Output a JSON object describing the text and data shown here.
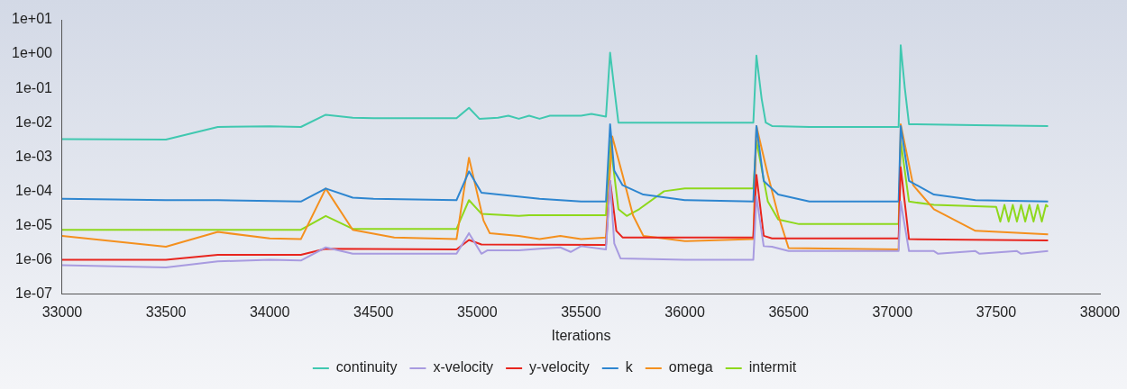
{
  "chart_data": {
    "type": "line",
    "xlabel": "Iterations",
    "log": "y",
    "grid": false,
    "legend": "bottom",
    "marker": "none",
    "line_style": "solid",
    "xlim": [
      33000,
      38000
    ],
    "xticks": [
      33000,
      33500,
      34000,
      34500,
      35000,
      35500,
      36000,
      36500,
      37000,
      37500,
      38000
    ],
    "ylim": [
      1e-07,
      10
    ],
    "yticks": [
      {
        "value": 1e-07,
        "label": "1e-07"
      },
      {
        "value": 1e-06,
        "label": "1e-06"
      },
      {
        "value": 1e-05,
        "label": "1e-05"
      },
      {
        "value": 0.0001,
        "label": "1e-04"
      },
      {
        "value": 0.001,
        "label": "1e-03"
      },
      {
        "value": 0.01,
        "label": "1e-02"
      },
      {
        "value": 0.1,
        "label": "1e-01"
      },
      {
        "value": 1,
        "label": "1e+00"
      },
      {
        "value": 10,
        "label": "1e+01"
      }
    ],
    "series": [
      {
        "name": "continuity",
        "color": "#40c8b0",
        "x": [
          33000,
          33500,
          33750,
          34000,
          34150,
          34270,
          34400,
          34500,
          34900,
          34960,
          35010,
          35100,
          35150,
          35200,
          35250,
          35300,
          35350,
          35500,
          35550,
          35620,
          35640,
          35660,
          35680,
          36000,
          36330,
          36345,
          36370,
          36390,
          36420,
          36600,
          37030,
          37040,
          37060,
          37080,
          37400,
          37750
        ],
        "values": [
          0.0033,
          0.0032,
          0.0075,
          0.0078,
          0.0075,
          0.017,
          0.014,
          0.0135,
          0.0135,
          0.027,
          0.013,
          0.014,
          0.016,
          0.013,
          0.016,
          0.013,
          0.016,
          0.016,
          0.018,
          0.015,
          1.1,
          0.1,
          0.01,
          0.01,
          0.01,
          0.9,
          0.05,
          0.01,
          0.008,
          0.0075,
          0.0075,
          1.8,
          0.1,
          0.009,
          0.0085,
          0.008
        ]
      },
      {
        "name": "x-velocity",
        "color": "#a89be0",
        "x": [
          33000,
          33500,
          33750,
          34000,
          34150,
          34270,
          34400,
          34900,
          34960,
          35020,
          35050,
          35200,
          35300,
          35400,
          35450,
          35500,
          35620,
          35640,
          35660,
          35690,
          36000,
          36330,
          36345,
          36380,
          36420,
          36500,
          37030,
          37040,
          37080,
          37200,
          37220,
          37400,
          37420,
          37600,
          37620,
          37750
        ],
        "values": [
          7e-07,
          6e-07,
          9e-07,
          1e-06,
          9.5e-07,
          2.3e-06,
          1.5e-06,
          1.5e-06,
          6e-06,
          1.5e-06,
          1.9e-06,
          1.9e-06,
          2.1e-06,
          2.3e-06,
          1.7e-06,
          2.5e-06,
          2e-06,
          0.0002,
          3e-06,
          1.1e-06,
          1e-06,
          1e-06,
          7e-05,
          2.5e-06,
          2.4e-06,
          1.8e-06,
          1.8e-06,
          5e-05,
          1.8e-06,
          1.8e-06,
          1.5e-06,
          1.8e-06,
          1.5e-06,
          1.8e-06,
          1.5e-06,
          1.8e-06
        ]
      },
      {
        "name": "y-velocity",
        "color": "#e8251e",
        "x": [
          33000,
          33500,
          33750,
          34150,
          34270,
          34900,
          34960,
          35020,
          35620,
          35640,
          35670,
          35700,
          36330,
          36345,
          36380,
          36420,
          37030,
          37040,
          37080,
          37750
        ],
        "values": [
          1e-06,
          1e-06,
          1.4e-06,
          1.4e-06,
          2.1e-06,
          2e-06,
          3.8e-06,
          2.8e-06,
          2.7e-06,
          0.0002,
          7e-06,
          4.5e-06,
          4.5e-06,
          0.0003,
          5e-06,
          4.2e-06,
          4.2e-06,
          0.0005,
          4e-06,
          3.7e-06
        ]
      },
      {
        "name": "k",
        "color": "#2e86d0",
        "x": [
          33000,
          33500,
          33750,
          34150,
          34270,
          34400,
          34500,
          34900,
          34960,
          35020,
          35300,
          35500,
          35620,
          35640,
          35660,
          35700,
          35800,
          36000,
          36330,
          36345,
          36380,
          36450,
          36600,
          37030,
          37040,
          37080,
          37200,
          37400,
          37750
        ],
        "values": [
          6e-05,
          5.5e-05,
          5.5e-05,
          5e-05,
          0.00012,
          6.5e-05,
          6e-05,
          5.5e-05,
          0.00038,
          9e-05,
          6e-05,
          5e-05,
          5e-05,
          0.009,
          0.0004,
          0.00015,
          8e-05,
          5.5e-05,
          5e-05,
          0.008,
          0.0002,
          8e-05,
          5e-05,
          5e-05,
          0.008,
          0.0002,
          8e-05,
          5.5e-05,
          5e-05
        ]
      },
      {
        "name": "omega",
        "color": "#f4901e",
        "x": [
          33000,
          33500,
          33750,
          34000,
          34150,
          34270,
          34400,
          34600,
          34900,
          34960,
          35030,
          35060,
          35200,
          35300,
          35400,
          35500,
          35620,
          35650,
          35700,
          35750,
          35800,
          36000,
          36330,
          36345,
          36400,
          36450,
          36500,
          37030,
          37040,
          37100,
          37200,
          37400,
          37750
        ],
        "values": [
          5e-06,
          2.4e-06,
          6.5e-06,
          4.2e-06,
          4e-06,
          0.00012,
          7.5e-06,
          4.5e-06,
          4e-06,
          0.00095,
          1.4e-05,
          6e-06,
          5e-06,
          4e-06,
          5e-06,
          4e-06,
          4.5e-06,
          0.004,
          0.0003,
          2e-05,
          5e-06,
          3.5e-06,
          4e-06,
          0.008,
          0.0003,
          2e-05,
          2.2e-06,
          2e-06,
          0.009,
          0.00015,
          3e-05,
          7e-06,
          5.5e-06
        ]
      },
      {
        "name": "intermit",
        "color": "#8ed81c",
        "x": [
          33000,
          34150,
          34270,
          34400,
          34900,
          34960,
          35020,
          35200,
          35250,
          35620,
          35640,
          35680,
          35720,
          35780,
          35900,
          36000,
          36330,
          36345,
          36400,
          36450,
          36550,
          37030,
          37040,
          37080,
          37200,
          37500,
          37520,
          37540,
          37560,
          37580,
          37600,
          37620,
          37640,
          37660,
          37680,
          37700,
          37720,
          37740,
          37750
        ],
        "values": [
          7.5e-06,
          7.5e-06,
          1.9e-05,
          8e-06,
          8e-06,
          5.5e-05,
          2.2e-05,
          1.9e-05,
          2e-05,
          2e-05,
          0.003,
          3e-05,
          1.9e-05,
          3e-05,
          0.0001,
          0.00012,
          0.00012,
          0.003,
          5e-05,
          1.5e-05,
          1.1e-05,
          1.1e-05,
          0.003,
          5e-05,
          4e-05,
          3.5e-05,
          1.3e-05,
          4e-05,
          1.3e-05,
          4e-05,
          1.3e-05,
          4e-05,
          1.3e-05,
          4e-05,
          1.3e-05,
          4e-05,
          1.3e-05,
          4e-05,
          3.5e-05
        ]
      }
    ]
  }
}
